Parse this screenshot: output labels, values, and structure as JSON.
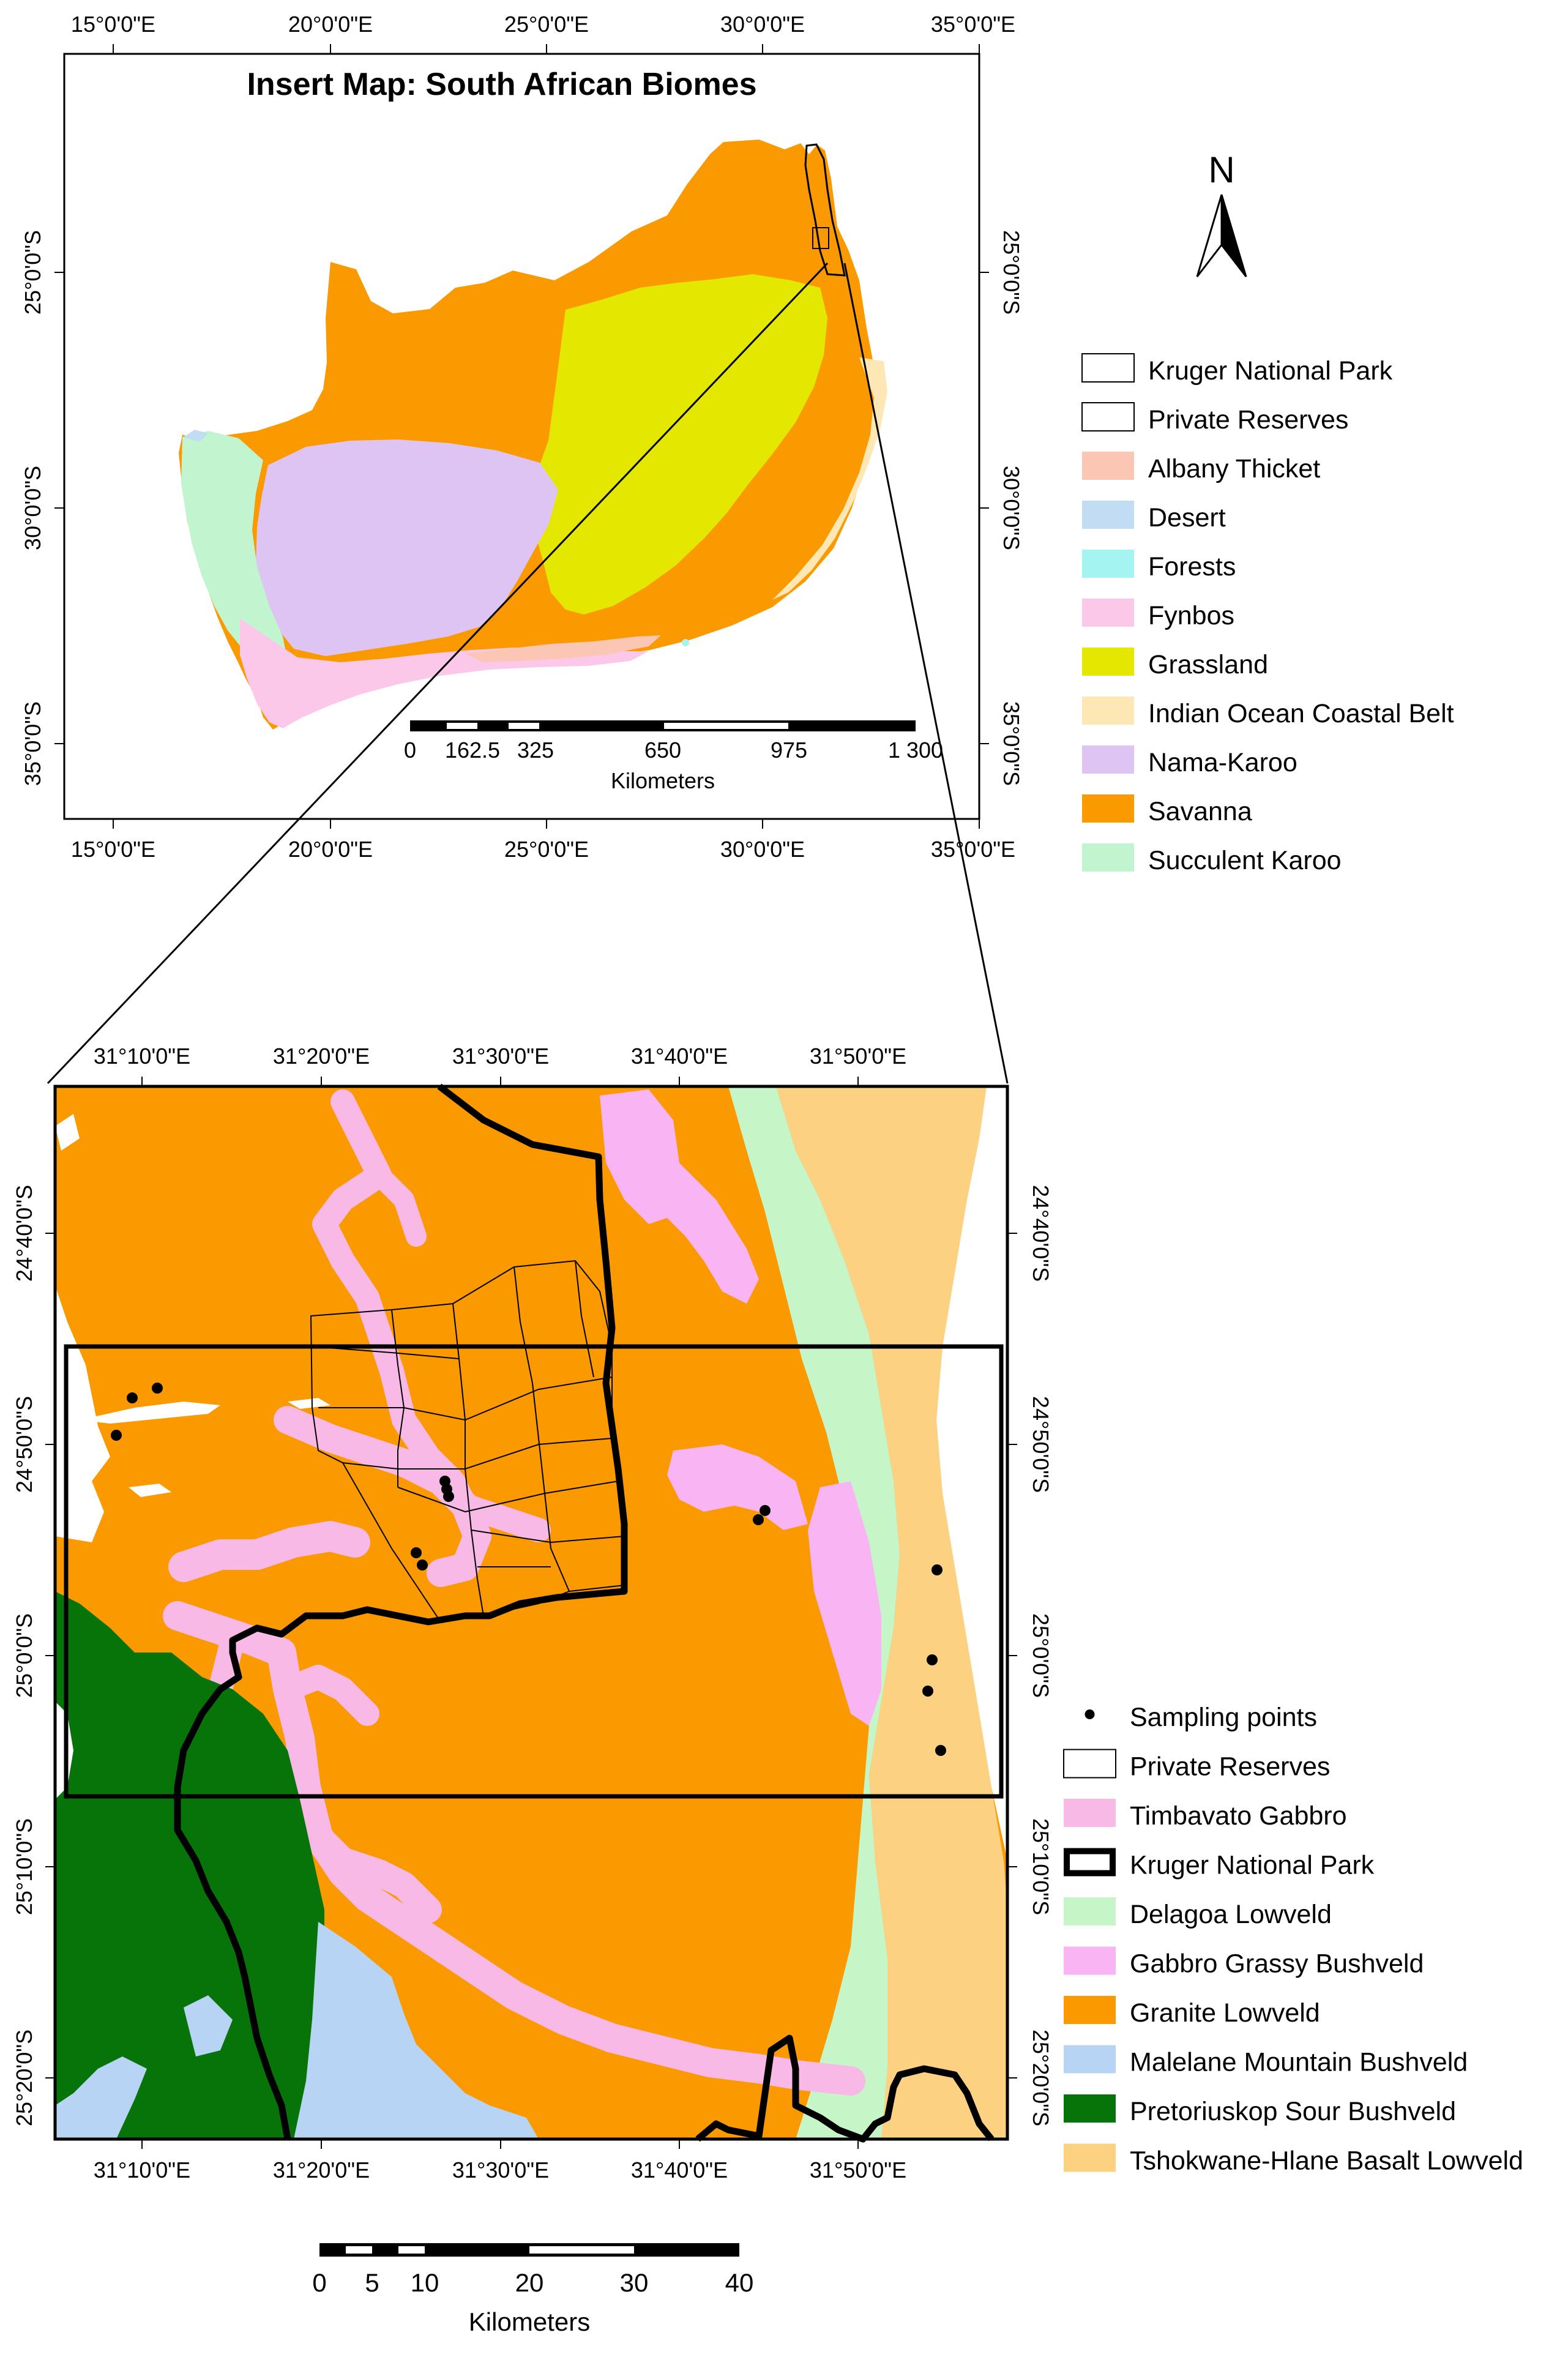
{
  "colors": {
    "albany_thicket": "#fbc7b4",
    "desert": "#c2dcf4",
    "forests": "#a4f4f2",
    "fynbos": "#fbc8ea",
    "grassland": "#e4e800",
    "indian_ocean_coastal_belt": "#fde7b5",
    "nama_karoo": "#dec4f2",
    "savanna": "#fb9900",
    "succulent_karoo": "#c1f5d0",
    "timbavato_gabbro": "#f8b9e6",
    "delagoa_lowveld": "#c6f5c8",
    "gabbro_grassy_bushveld": "#f9b5f3",
    "granite_lowveld": "#fb9900",
    "malelane_mountain_bushveld": "#b8d4f5",
    "pretoriuskop_sour_bushveld": "#067408",
    "tshokwane_hlane_basalt_lowveld": "#fdd182"
  },
  "insert_map": {
    "title": "Insert Map: South African Biomes",
    "top_ticks": [
      "15°0'0\"E",
      "20°0'0\"E",
      "25°0'0\"E",
      "30°0'0\"E",
      "35°0'0\"E"
    ],
    "bottom_ticks": [
      "15°0'0\"E",
      "20°0'0\"E",
      "25°0'0\"E",
      "30°0'0\"E",
      "35°0'0\"E"
    ],
    "left_ticks": [
      "25°0'0\"S",
      "30°0'0\"S",
      "35°0'0\"S"
    ],
    "right_ticks": [
      "25°0'0\"S",
      "30°0'0\"S",
      "35°0'0\"S"
    ],
    "scale_labels": [
      "0",
      "162.5",
      "325",
      "650",
      "975",
      "1 300"
    ],
    "scale_unit": "Kilometers",
    "north_label": "N"
  },
  "insert_legend": [
    {
      "label": "Kruger National Park",
      "color": "#ffffff",
      "style": "thin"
    },
    {
      "label": "Private Reserves",
      "color": "#ffffff",
      "style": "thin"
    },
    {
      "label": "Albany Thicket",
      "color": "#fbc7b4",
      "style": "fill"
    },
    {
      "label": "Desert",
      "color": "#c2dcf4",
      "style": "fill"
    },
    {
      "label": "Forests",
      "color": "#a4f4f2",
      "style": "fill"
    },
    {
      "label": "Fynbos",
      "color": "#fbc8ea",
      "style": "fill"
    },
    {
      "label": "Grassland",
      "color": "#e4e800",
      "style": "fill"
    },
    {
      "label": "Indian Ocean Coastal Belt",
      "color": "#fde7b5",
      "style": "fill"
    },
    {
      "label": "Nama-Karoo",
      "color": "#dec4f2",
      "style": "fill"
    },
    {
      "label": "Savanna",
      "color": "#fb9900",
      "style": "fill"
    },
    {
      "label": "Succulent Karoo",
      "color": "#c1f5d0",
      "style": "fill"
    }
  ],
  "main_map": {
    "top_ticks": [
      "31°10'0\"E",
      "31°20'0\"E",
      "31°30'0\"E",
      "31°40'0\"E",
      "31°50'0\"E"
    ],
    "bottom_ticks": [
      "31°10'0\"E",
      "31°20'0\"E",
      "31°30'0\"E",
      "31°40'0\"E",
      "31°50'0\"E"
    ],
    "left_ticks": [
      "24°40'0\"S",
      "24°50'0\"S",
      "25°0'0\"S",
      "25°10'0\"S",
      "25°20'0\"S"
    ],
    "right_ticks": [
      "24°40'0\"S",
      "24°50'0\"S",
      "25°0'0\"S",
      "25°10'0\"S",
      "25°20'0\"S"
    ],
    "scale_labels": [
      "0",
      "5",
      "10",
      "20",
      "30",
      "40"
    ],
    "scale_unit": "Kilometers"
  },
  "main_legend": [
    {
      "label": "Sampling points",
      "color": "#000000",
      "style": "point"
    },
    {
      "label": "Private Reserves",
      "color": "#ffffff",
      "style": "thin"
    },
    {
      "label": "Timbavato Gabbro",
      "color": "#f8b9e6",
      "style": "fill"
    },
    {
      "label": "Kruger National Park",
      "color": "#ffffff",
      "style": "thick"
    },
    {
      "label": "Delagoa Lowveld",
      "color": "#c6f5c8",
      "style": "fill"
    },
    {
      "label": "Gabbro Grassy Bushveld",
      "color": "#f9b5f3",
      "style": "fill"
    },
    {
      "label": "Granite Lowveld",
      "color": "#fb9900",
      "style": "fill"
    },
    {
      "label": "Malelane Mountain Bushveld",
      "color": "#b8d4f5",
      "style": "fill"
    },
    {
      "label": "Pretoriuskop Sour Bushveld",
      "color": "#067408",
      "style": "fill"
    },
    {
      "label": "Tshokwane-Hlane Basalt Lowveld",
      "color": "#fdd182",
      "style": "fill"
    }
  ]
}
